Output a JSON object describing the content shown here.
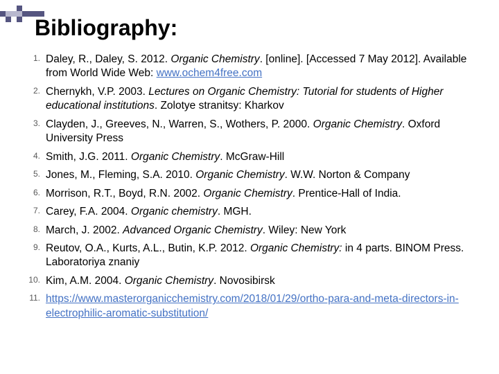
{
  "decor": {
    "empty_color": "#ffffff",
    "mid_color": "#b8b8ce",
    "dark_color": "#555580",
    "border_color": "#d0d0d8",
    "grid": [
      [
        0,
        0,
        0,
        0,
        0,
        0,
        0,
        0
      ],
      [
        0,
        0,
        0,
        2,
        0,
        0,
        0,
        0
      ],
      [
        2,
        1,
        1,
        1,
        2,
        2,
        2,
        2
      ],
      [
        0,
        2,
        0,
        2,
        0,
        0,
        0,
        0
      ]
    ]
  },
  "title": "Bibliography:",
  "items": [
    {
      "segments": [
        {
          "text": "Daley, R., Daley, S. 2012. "
        },
        {
          "text": "Organic Chemistry",
          "style": "ital"
        },
        {
          "text": ". [online]. [Accessed 7 May 2012]. Available from World Wide Web: "
        },
        {
          "text": "www.ochem4free.com",
          "style": "link"
        }
      ]
    },
    {
      "segments": [
        {
          "text": "Chernykh, V.P. 2003. "
        },
        {
          "text": "Lectures on Organic Chemistry: Tutorial for students of Higher educational institutions",
          "style": "ital"
        },
        {
          "text": ". Zolotye stranitsy: Kharkov"
        }
      ]
    },
    {
      "segments": [
        {
          "text": "Clayden, J., Greeves, N., Warren, S., Wothers, P. 2000. "
        },
        {
          "text": "Organic Chemistry",
          "style": "ital"
        },
        {
          "text": ". Oxford University Press"
        }
      ]
    },
    {
      "segments": [
        {
          "text": "Smith, J.G. 2011. "
        },
        {
          "text": "Organic Chemistry",
          "style": "ital"
        },
        {
          "text": ". McGraw-Hill"
        }
      ]
    },
    {
      "segments": [
        {
          "text": "Jones, M., Fleming, S.A. 2010. "
        },
        {
          "text": "Organic Chemistry",
          "style": "ital"
        },
        {
          "text": ". W.W. Norton & Company"
        }
      ]
    },
    {
      "segments": [
        {
          "text": "Morrison, R.T., Boyd, R.N. 2002. "
        },
        {
          "text": "Organic Chemistry",
          "style": "ital"
        },
        {
          "text": ". Prentice-Hall of India."
        }
      ]
    },
    {
      "segments": [
        {
          "text": "Carey, F.A. 2004. "
        },
        {
          "text": "Organic chemistry",
          "style": "ital"
        },
        {
          "text": ". MGH."
        }
      ]
    },
    {
      "segments": [
        {
          "text": "March, J. 2002. "
        },
        {
          "text": "Advanced Organic Chemistry",
          "style": "ital"
        },
        {
          "text": ". Wiley: New York"
        }
      ]
    },
    {
      "segments": [
        {
          "text": "Reutov, O.A., Kurts, A.L., Butin, K.P. 2012. "
        },
        {
          "text": "Organic Chemistry:",
          "style": "ital"
        },
        {
          "text": " in 4 parts. BINOM Press. Laboratoriya znaniy"
        }
      ]
    },
    {
      "segments": [
        {
          "text": "Kim, A.M. 2004. "
        },
        {
          "text": "Organic Chemistry",
          "style": "ital"
        },
        {
          "text": ". Novosibirsk"
        }
      ]
    },
    {
      "segments": [
        {
          "text": "https://www.masterorganicchemistry.com/2018/01/29/ortho-para-and-meta-directors-in-electrophilic-aromatic-substitution/",
          "style": "link"
        }
      ]
    }
  ]
}
